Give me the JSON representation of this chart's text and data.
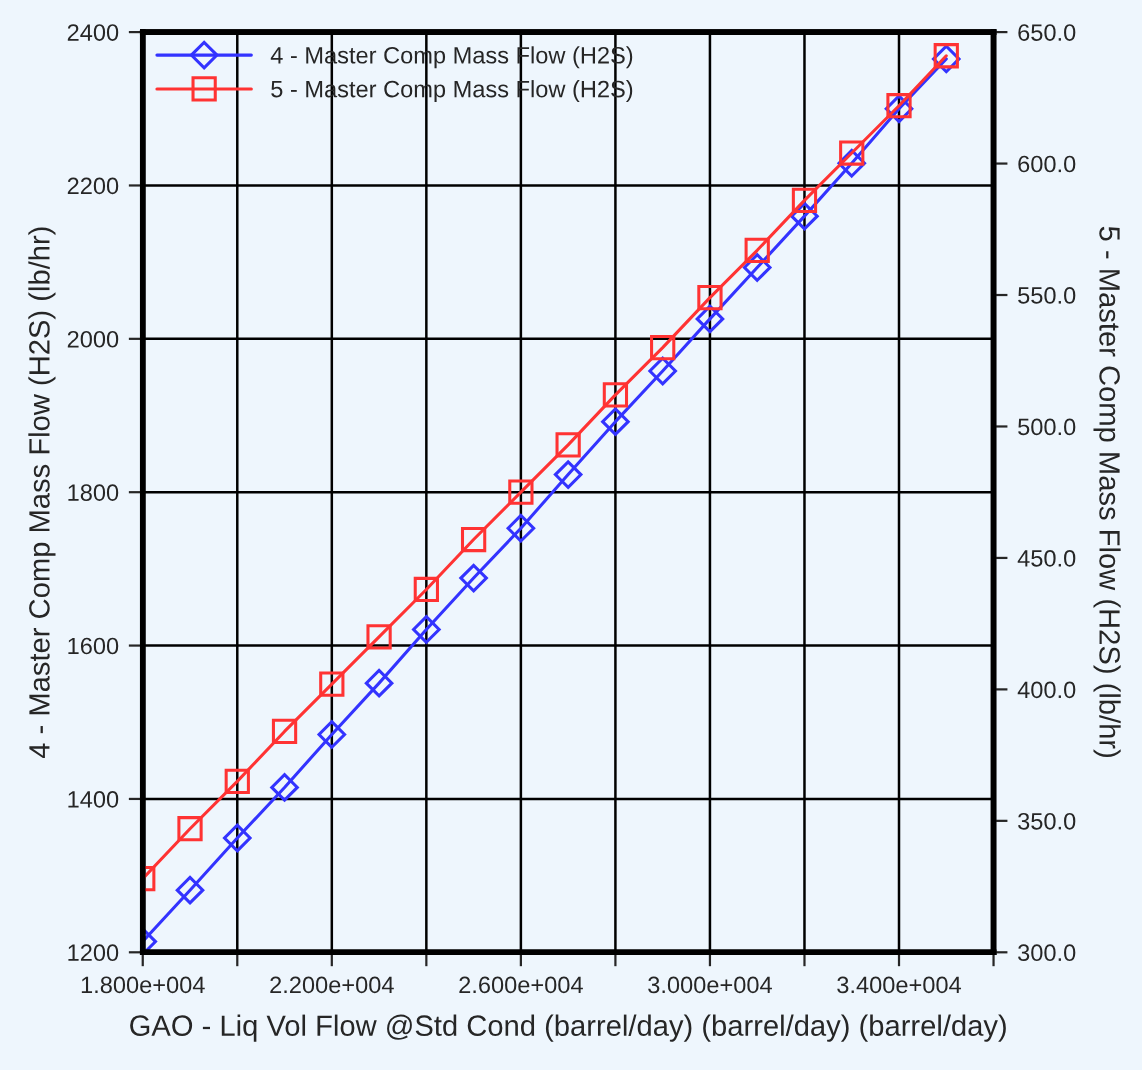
{
  "chart_data": {
    "type": "line",
    "xlabel": "GAO - Liq Vol Flow @Std Cond (barrel/day) (barrel/day) (barrel/day)",
    "ylabel": "4 - Master Comp Mass Flow (H2S) (lb/hr)",
    "y2label": "5 - Master Comp Mass Flow (H2S) (lb/hr)",
    "x": [
      18000,
      19000,
      20000,
      21000,
      22000,
      23000,
      24000,
      25000,
      26000,
      27000,
      28000,
      29000,
      30000,
      31000,
      32000,
      33000,
      34000,
      35000
    ],
    "series": [
      {
        "name": "4 - Master Comp Mass Flow (H2S)",
        "color": "#3333ff",
        "marker": "diamond",
        "values": [
          1214,
          1281,
          1349,
          1415,
          1484,
          1551,
          1621,
          1688,
          1753,
          1823,
          1892,
          1958,
          2026,
          2093,
          2160,
          2229,
          2300,
          2365
        ]
      },
      {
        "name": "5 - Master Comp Mass Flow (H2S)",
        "color": "#ff3333",
        "marker": "square",
        "axis": "y2",
        "values": [
          328,
          347,
          365,
          384,
          402,
          420,
          438,
          457,
          475,
          493,
          512,
          530,
          549,
          567,
          586,
          604,
          622,
          641
        ]
      }
    ],
    "xlim": [
      18000,
      36000
    ],
    "xticks": [
      {
        "value": 18000,
        "label": "1.800e+004"
      },
      {
        "value": 20000,
        "label": null
      },
      {
        "value": 22000,
        "label": "2.200e+004"
      },
      {
        "value": 24000,
        "label": null
      },
      {
        "value": 26000,
        "label": "2.600e+004"
      },
      {
        "value": 28000,
        "label": null
      },
      {
        "value": 30000,
        "label": "3.000e+004"
      },
      {
        "value": 32000,
        "label": null
      },
      {
        "value": 34000,
        "label": "3.400e+004"
      },
      {
        "value": 36000,
        "label": null
      }
    ],
    "ylim": [
      1200,
      2400
    ],
    "yticks": [
      1200,
      1400,
      1600,
      1800,
      2000,
      2200,
      2400
    ],
    "y2lim": [
      300,
      650
    ],
    "y2ticks": [
      {
        "value": 300,
        "label": "300.0"
      },
      {
        "value": 350,
        "label": "350.0"
      },
      {
        "value": 400,
        "label": "400.0"
      },
      {
        "value": 450,
        "label": "450.0"
      },
      {
        "value": 500,
        "label": "500.0"
      },
      {
        "value": 550,
        "label": "550.0"
      },
      {
        "value": 600,
        "label": "600.0"
      },
      {
        "value": 650,
        "label": "650.0"
      }
    ],
    "grid": true,
    "legend": "top left",
    "line_style": "solid"
  }
}
